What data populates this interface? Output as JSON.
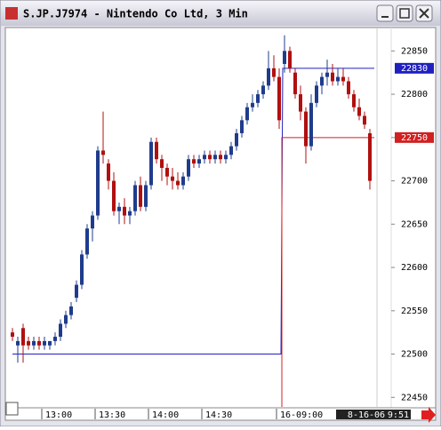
{
  "chart_data": {
    "type": "candlestick",
    "title": "S.JP.J7974 - Nintendo Co Ltd, 3 Min",
    "categories": [
      null,
      null,
      null,
      null,
      null,
      null,
      "13:00",
      null,
      null,
      null,
      null,
      null,
      null,
      null,
      null,
      null,
      "13:30",
      null,
      null,
      null,
      null,
      null,
      null,
      null,
      null,
      null,
      "14:00",
      null,
      null,
      null,
      null,
      null,
      null,
      null,
      null,
      null,
      "14:30",
      null,
      null,
      null,
      null,
      null,
      null,
      null,
      null,
      null,
      null,
      null,
      null,
      null,
      "16-09:00",
      null,
      null,
      null,
      null,
      null,
      null,
      null,
      null,
      null,
      null,
      null,
      null,
      null,
      null,
      null,
      null,
      null
    ],
    "open": [
      22525,
      22510,
      22530,
      22515,
      22510,
      22515,
      22510,
      22510,
      22515,
      22520,
      22535,
      22545,
      22565,
      22580,
      22615,
      22645,
      22660,
      22735,
      22720,
      22700,
      22665,
      22670,
      22660,
      22665,
      22695,
      22670,
      22695,
      22745,
      22725,
      22715,
      22705,
      22700,
      22695,
      22705,
      22725,
      22720,
      22725,
      22730,
      22725,
      22730,
      22725,
      22730,
      22740,
      22755,
      22770,
      22785,
      22790,
      22800,
      22810,
      22830,
      22820,
      22835,
      22850,
      22825,
      22800,
      22780,
      22740,
      22790,
      22810,
      22820,
      22825,
      22815,
      22820,
      22815,
      22800,
      22785,
      22775,
      22755
    ],
    "high": [
      22530,
      22520,
      22535,
      22520,
      22520,
      22520,
      22520,
      22515,
      22525,
      22540,
      22550,
      22560,
      22585,
      22620,
      22650,
      22665,
      22740,
      22780,
      22725,
      22710,
      22675,
      22680,
      22670,
      22700,
      22705,
      22700,
      22750,
      22750,
      22730,
      22720,
      22715,
      22710,
      22710,
      22730,
      22730,
      22730,
      22735,
      22735,
      22735,
      22735,
      22735,
      22745,
      22760,
      22775,
      22790,
      22800,
      22805,
      22815,
      22850,
      22845,
      22830,
      22868,
      22855,
      22830,
      22810,
      22785,
      22800,
      22815,
      22825,
      22840,
      22835,
      22830,
      22830,
      22820,
      22805,
      22795,
      22780,
      22760
    ],
    "low": [
      22515,
      22490,
      22490,
      22505,
      22505,
      22505,
      22505,
      22505,
      22510,
      22515,
      22530,
      22540,
      22560,
      22575,
      22610,
      22630,
      22655,
      22720,
      22690,
      22660,
      22650,
      22650,
      22650,
      22660,
      22665,
      22665,
      22690,
      22720,
      22700,
      22695,
      22690,
      22690,
      22690,
      22700,
      22715,
      22715,
      22720,
      22720,
      22720,
      22720,
      22720,
      22725,
      22735,
      22750,
      22765,
      22780,
      22785,
      22795,
      22805,
      22815,
      22760,
      22825,
      22825,
      22795,
      22770,
      22720,
      22735,
      22785,
      22800,
      22810,
      22810,
      22810,
      22810,
      22795,
      22780,
      22770,
      22760,
      22690
    ],
    "close": [
      22520,
      22515,
      22510,
      22510,
      22515,
      22510,
      22515,
      22515,
      22520,
      22535,
      22545,
      22555,
      22580,
      22615,
      22645,
      22660,
      22735,
      22730,
      22700,
      22665,
      22670,
      22660,
      22665,
      22695,
      22670,
      22695,
      22745,
      22725,
      22715,
      22705,
      22700,
      22695,
      22705,
      22725,
      22720,
      22725,
      22730,
      22725,
      22730,
      22725,
      22730,
      22740,
      22755,
      22770,
      22785,
      22790,
      22800,
      22810,
      22830,
      22820,
      22770,
      22850,
      22830,
      22800,
      22780,
      22740,
      22790,
      22810,
      22820,
      22825,
      22815,
      22820,
      22815,
      22800,
      22785,
      22775,
      22765,
      22700
    ],
    "up_color": "#1f3c8c",
    "down_color": "#b01010",
    "ylim": [
      22439,
      22876
    ],
    "yticks": [
      22450,
      22500,
      22550,
      22600,
      22650,
      22700,
      22750,
      22800,
      22850
    ],
    "levels": [
      {
        "value": 22830,
        "prior": 22500,
        "color": "#2020c0"
      },
      {
        "value": 22750,
        "color": "#d02020"
      }
    ],
    "status": {
      "date": "8-16-06",
      "time": "9:51"
    }
  }
}
